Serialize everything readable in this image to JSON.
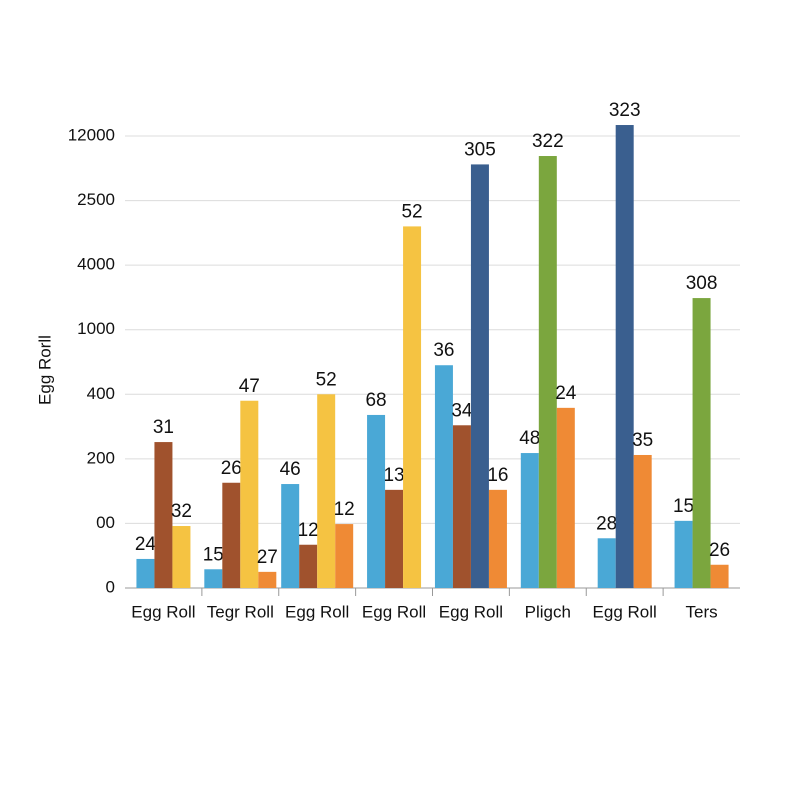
{
  "chart_data": {
    "type": "bar",
    "y_label": "Egg Rorll",
    "categories": [
      "Egg Roll",
      "Tegr Roll",
      "Egg Roll",
      "Egg Roll",
      "Egg Roll",
      "Pligch",
      "Egg Roll",
      "Ters"
    ],
    "ylim": [
      0,
      7
    ],
    "yticks": [
      0,
      {
        "value": 1,
        "label": "00"
      },
      {
        "value": 2,
        "label": "200"
      },
      {
        "value": 3,
        "label": "400"
      },
      {
        "value": 4,
        "label": "1000"
      },
      {
        "value": 5,
        "label": "4000"
      },
      {
        "value": 6,
        "label": "2500"
      },
      {
        "value": 7,
        "label": "12000"
      }
    ],
    "grid": true,
    "series": [
      {
        "color": "#4aa8d6",
        "values": [
          0.45,
          0.29,
          1.61,
          2.68,
          3.45,
          2.09,
          0.77,
          1.04
        ],
        "value_labels": [
          "24",
          "15",
          "46",
          "68",
          "36",
          "48",
          "28",
          "15"
        ]
      },
      {
        "color": "#a0522d",
        "values": [
          2.26,
          1.63,
          0.67,
          1.52,
          2.52,
          null,
          null,
          null
        ],
        "value_labels": [
          "31",
          "26",
          "12",
          "13",
          "34",
          null,
          null,
          null
        ]
      },
      {
        "color": "#f5c342",
        "values": [
          0.96,
          2.9,
          3.0,
          5.6,
          null,
          null,
          null,
          null
        ],
        "value_labels": [
          "32",
          "47",
          "52",
          "52",
          null,
          null,
          null,
          null
        ]
      },
      {
        "color": "#3a5f8f",
        "values": [
          null,
          null,
          null,
          null,
          6.56,
          null,
          7.17,
          null
        ],
        "value_labels": [
          null,
          null,
          null,
          null,
          "305",
          null,
          "323",
          null
        ]
      },
      {
        "color": "#7ba63e",
        "values": [
          null,
          null,
          null,
          null,
          null,
          6.69,
          null,
          4.49
        ],
        "value_labels": [
          null,
          null,
          null,
          null,
          null,
          "322",
          null,
          "308"
        ]
      },
      {
        "color": "#ef8a35",
        "values": [
          null,
          0.25,
          0.99,
          null,
          1.52,
          2.79,
          2.06,
          0.36
        ],
        "value_labels": [
          null,
          "27",
          "12",
          null,
          "16",
          "24",
          "35",
          "26"
        ]
      }
    ]
  }
}
